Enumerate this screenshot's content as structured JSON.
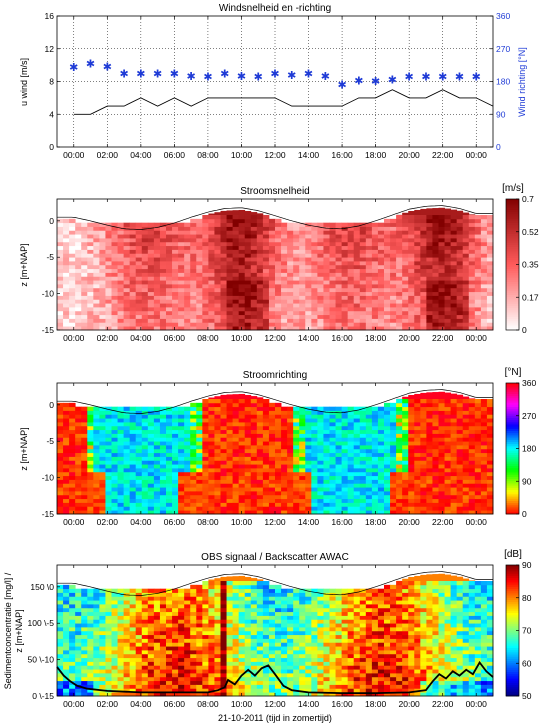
{
  "chart_data": [
    {
      "type": "line",
      "title": "Windsnelheid en -richting",
      "ylabel": "u wind [m/s]",
      "y2label": "Wind richting [°N]",
      "ylim": [
        0,
        16
      ],
      "y2lim": [
        0,
        360
      ],
      "yticks": [
        "0",
        "4",
        "8",
        "12",
        "16"
      ],
      "y2ticks": [
        "0",
        "90",
        "180",
        "270",
        "360"
      ],
      "xticks": [
        "00:00",
        "02:00",
        "04:00",
        "06:00",
        "08:00",
        "10:00",
        "12:00",
        "14:00",
        "16:00",
        "18:00",
        "20:00",
        "22:00",
        "00:00"
      ],
      "xlim_hours": [
        -1,
        25
      ],
      "series": [
        {
          "color": "#000000",
          "x": [
            0,
            1,
            2,
            3,
            4,
            5,
            6,
            7,
            8,
            9,
            10,
            11,
            12,
            13,
            14,
            15,
            16,
            17,
            18,
            19,
            20,
            21,
            22,
            23,
            24,
            25
          ],
          "values": [
            4,
            4,
            5,
            5,
            6,
            5,
            6,
            5,
            6,
            6,
            6,
            6,
            6,
            5,
            5,
            5,
            5,
            6,
            6,
            7,
            6,
            6,
            7,
            6,
            6,
            5
          ]
        },
        {
          "color": "#1f3bd6",
          "marker": "star",
          "x": [
            0,
            1,
            2,
            3,
            4,
            5,
            6,
            7,
            8,
            9,
            10,
            11,
            12,
            13,
            14,
            15,
            16,
            17,
            18,
            19,
            20,
            21,
            22,
            23,
            24
          ],
          "values": [
            218,
            228,
            220,
            200,
            200,
            200,
            200,
            194,
            192,
            200,
            194,
            192,
            200,
            196,
            200,
            194,
            170,
            182,
            180,
            184,
            192,
            192,
            192,
            192,
            192
          ]
        }
      ]
    },
    {
      "type": "heatmap",
      "title": "Stroomsnelheid",
      "ylabel": "z [m+NAP]",
      "ylim": [
        -15,
        3
      ],
      "yticks": [
        "-15",
        "-10",
        "-5",
        "0"
      ],
      "xticks": [
        "00:00",
        "02:00",
        "04:00",
        "06:00",
        "08:00",
        "10:00",
        "12:00",
        "14:00",
        "16:00",
        "18:00",
        "20:00",
        "22:00",
        "00:00"
      ],
      "colorbar_label": "[m/s]",
      "colorbar_ticks": [
        "0.7",
        "0.525",
        "0.35",
        "0.175",
        "0"
      ],
      "colormap": "white-red",
      "clim": [
        0,
        0.7
      ],
      "water_level": [
        0.2,
        -0.3,
        -0.9,
        -1.4,
        -1.5,
        -1.2,
        -0.6,
        0.2,
        0.9,
        1.4,
        1.5,
        1.1,
        0.4,
        -0.3,
        -0.9,
        -1.3,
        -1.4,
        -1.0,
        -0.3,
        0.5,
        1.3,
        1.7,
        1.8,
        1.4,
        0.7
      ]
    },
    {
      "type": "heatmap",
      "title": "Stroomrichting",
      "ylabel": "z [m+NAP]",
      "ylim": [
        -15,
        3
      ],
      "yticks": [
        "-15",
        "-10",
        "-5",
        "0"
      ],
      "xticks": [
        "00:00",
        "02:00",
        "04:00",
        "06:00",
        "08:00",
        "10:00",
        "12:00",
        "14:00",
        "16:00",
        "18:00",
        "20:00",
        "22:00",
        "00:00"
      ],
      "colorbar_label": "[°N]",
      "colorbar_ticks": [
        "360",
        "270",
        "180",
        "90",
        "0"
      ],
      "colormap": "hsv",
      "clim": [
        0,
        360
      ],
      "water_level": [
        0.2,
        -0.3,
        -0.9,
        -1.4,
        -1.5,
        -1.2,
        -0.6,
        0.2,
        0.9,
        1.4,
        1.5,
        1.1,
        0.4,
        -0.3,
        -0.9,
        -1.3,
        -1.4,
        -1.0,
        -0.3,
        0.5,
        1.3,
        1.7,
        1.8,
        1.4,
        0.7
      ]
    },
    {
      "type": "heatmap",
      "title": "OBS signaal / Backscatter AWAC",
      "ylabel": "Sedimentconcentratie [mg/l] /",
      "ylabel2": "z [m+NAP]",
      "yticks": [
        "0 \\-15",
        "50 \\-10",
        "100 \\-5",
        "150 \\0"
      ],
      "xticks": [
        "00:00",
        "02:00",
        "04:00",
        "06:00",
        "08:00",
        "10:00",
        "12:00",
        "14:00",
        "16:00",
        "18:00",
        "20:00",
        "22:00",
        "00:00"
      ],
      "xlabel": "21-10-2011 (tijd in zomertijd)",
      "colorbar_label": "[dB]",
      "colorbar_ticks": [
        "90",
        "80",
        "70",
        "60",
        "50"
      ],
      "colormap": "jet",
      "clim": [
        50,
        90
      ],
      "water_level": [
        0.2,
        -0.3,
        -0.9,
        -1.4,
        -1.5,
        -1.2,
        -0.6,
        0.2,
        0.9,
        1.4,
        1.5,
        1.1,
        0.4,
        -0.3,
        -0.9,
        -1.3,
        -1.4,
        -1.0,
        -0.3,
        0.5,
        1.3,
        1.7,
        1.8,
        1.4,
        0.7
      ],
      "obs_series": {
        "color": "#000000",
        "x": [
          -1,
          -0.6,
          -0.2,
          0.2,
          0.8,
          2,
          4,
          6,
          8,
          8.6,
          9.0,
          9.2,
          9.6,
          10.0,
          10.4,
          10.8,
          11.2,
          11.6,
          12.0,
          12.5,
          13.0,
          14,
          16,
          18,
          20,
          21,
          21.4,
          21.8,
          22.2,
          22.6,
          23.0,
          23.4,
          23.8,
          24.2,
          24.6,
          25
        ],
        "values": [
          40,
          28,
          20,
          14,
          10,
          7,
          5,
          5,
          5,
          8,
          12,
          22,
          16,
          28,
          36,
          28,
          38,
          42,
          30,
          14,
          8,
          5,
          4,
          4,
          5,
          8,
          20,
          30,
          24,
          34,
          28,
          36,
          30,
          46,
          34,
          26
        ]
      }
    }
  ]
}
